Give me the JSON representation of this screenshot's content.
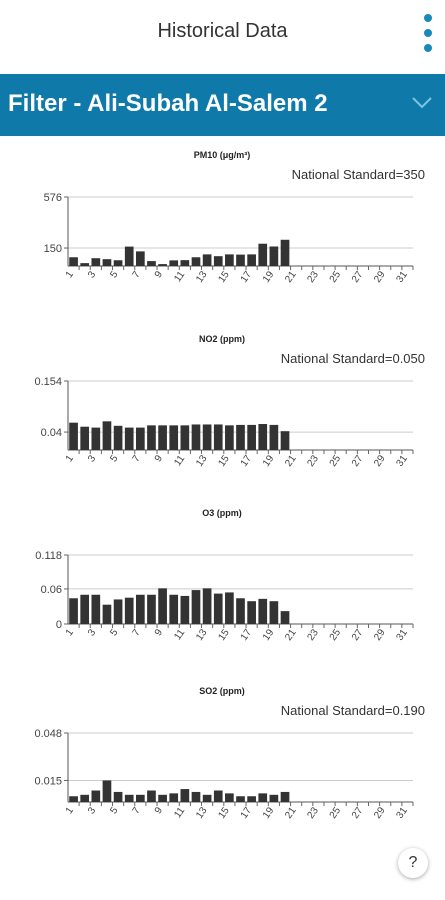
{
  "header": {
    "title": "Historical Data",
    "menu_icon": "kebab-menu-icon"
  },
  "filter": {
    "title": "Filter - Ali-Subah Al-Salem 2",
    "toggle_icon": "chevron-down-icon"
  },
  "help": {
    "label": "?",
    "icon": "help-icon"
  },
  "colors": {
    "filter_bar": "#0f7aaa",
    "bar": "#333333",
    "grid": "#cccccc",
    "accent": "#1a88b8"
  },
  "chart_data": [
    {
      "type": "bar",
      "title": "PM10 (μg/m³)",
      "standard_label": "National Standard=350",
      "yticks": [
        "576",
        "150"
      ],
      "ytick_values": [
        576,
        150
      ],
      "ylim": [
        0,
        576
      ],
      "categories": [
        1,
        2,
        3,
        4,
        5,
        6,
        7,
        8,
        9,
        10,
        11,
        12,
        13,
        14,
        15,
        16,
        17,
        18,
        19,
        20,
        21,
        22,
        23,
        24,
        25,
        26,
        27,
        28,
        29,
        30,
        31
      ],
      "xtick_labels": [
        "1",
        "3",
        "5",
        "7",
        "9",
        "11",
        "13",
        "15",
        "17",
        "19",
        "21",
        "23",
        "25",
        "27",
        "29",
        "31"
      ],
      "values": [
        73,
        24,
        65,
        57,
        48,
        162,
        122,
        41,
        16,
        47,
        49,
        73,
        97,
        82,
        97,
        95,
        97,
        186,
        163,
        219,
        null,
        null,
        null,
        null,
        null,
        null,
        null,
        null,
        null,
        null,
        null
      ]
    },
    {
      "type": "bar",
      "title": "NO2 (ppm)",
      "standard_label": "National Standard=0.050",
      "yticks": [
        "0.154",
        "0.04"
      ],
      "ytick_values": [
        0.154,
        0.04
      ],
      "ylim": [
        0,
        0.154
      ],
      "categories": [
        1,
        2,
        3,
        4,
        5,
        6,
        7,
        8,
        9,
        10,
        11,
        12,
        13,
        14,
        15,
        16,
        17,
        18,
        19,
        20,
        21,
        22,
        23,
        24,
        25,
        26,
        27,
        28,
        29,
        30,
        31
      ],
      "xtick_labels": [
        "1",
        "3",
        "5",
        "7",
        "9",
        "11",
        "13",
        "15",
        "17",
        "19",
        "21",
        "23",
        "25",
        "27",
        "29",
        "31"
      ],
      "values": [
        0.061,
        0.052,
        0.05,
        0.064,
        0.054,
        0.05,
        0.05,
        0.055,
        0.055,
        0.055,
        0.055,
        0.057,
        0.057,
        0.057,
        0.055,
        0.056,
        0.056,
        0.058,
        0.056,
        0.042,
        null,
        null,
        null,
        null,
        null,
        null,
        null,
        null,
        null,
        null,
        null
      ]
    },
    {
      "type": "bar",
      "title": "O3 (ppm)",
      "standard_label": "",
      "yticks": [
        "0.118",
        "0.06",
        "0"
      ],
      "ytick_values": [
        0.118,
        0.06,
        0
      ],
      "ylim": [
        0,
        0.118
      ],
      "categories": [
        1,
        2,
        3,
        4,
        5,
        6,
        7,
        8,
        9,
        10,
        11,
        12,
        13,
        14,
        15,
        16,
        17,
        18,
        19,
        20,
        21,
        22,
        23,
        24,
        25,
        26,
        27,
        28,
        29,
        30,
        31
      ],
      "xtick_labels": [
        "1",
        "3",
        "5",
        "7",
        "9",
        "11",
        "13",
        "15",
        "17",
        "19",
        "21",
        "23",
        "25",
        "27",
        "29",
        "31"
      ],
      "values": [
        0.044,
        0.05,
        0.05,
        0.033,
        0.042,
        0.045,
        0.05,
        0.05,
        0.061,
        0.05,
        0.048,
        0.058,
        0.061,
        0.052,
        0.054,
        0.044,
        0.039,
        0.043,
        0.039,
        0.022,
        null,
        null,
        null,
        null,
        null,
        null,
        null,
        null,
        null,
        null,
        null
      ]
    },
    {
      "type": "bar",
      "title": "SO2 (ppm)",
      "standard_label": "National Standard=0.190",
      "yticks": [
        "0.048",
        "0.015"
      ],
      "ytick_values": [
        0.048,
        0.015
      ],
      "ylim": [
        0,
        0.048
      ],
      "categories": [
        1,
        2,
        3,
        4,
        5,
        6,
        7,
        8,
        9,
        10,
        11,
        12,
        13,
        14,
        15,
        16,
        17,
        18,
        19,
        20,
        21,
        22,
        23,
        24,
        25,
        26,
        27,
        28,
        29,
        30,
        31
      ],
      "xtick_labels": [
        "1",
        "3",
        "5",
        "7",
        "9",
        "11",
        "13",
        "15",
        "17",
        "19",
        "21",
        "23",
        "25",
        "27",
        "29",
        "31"
      ],
      "values": [
        0.004,
        0.005,
        0.008,
        0.015,
        0.007,
        0.005,
        0.005,
        0.008,
        0.005,
        0.006,
        0.009,
        0.007,
        0.005,
        0.008,
        0.006,
        0.004,
        0.004,
        0.006,
        0.005,
        0.007,
        null,
        null,
        null,
        null,
        null,
        null,
        null,
        null,
        null,
        null,
        null
      ]
    }
  ]
}
